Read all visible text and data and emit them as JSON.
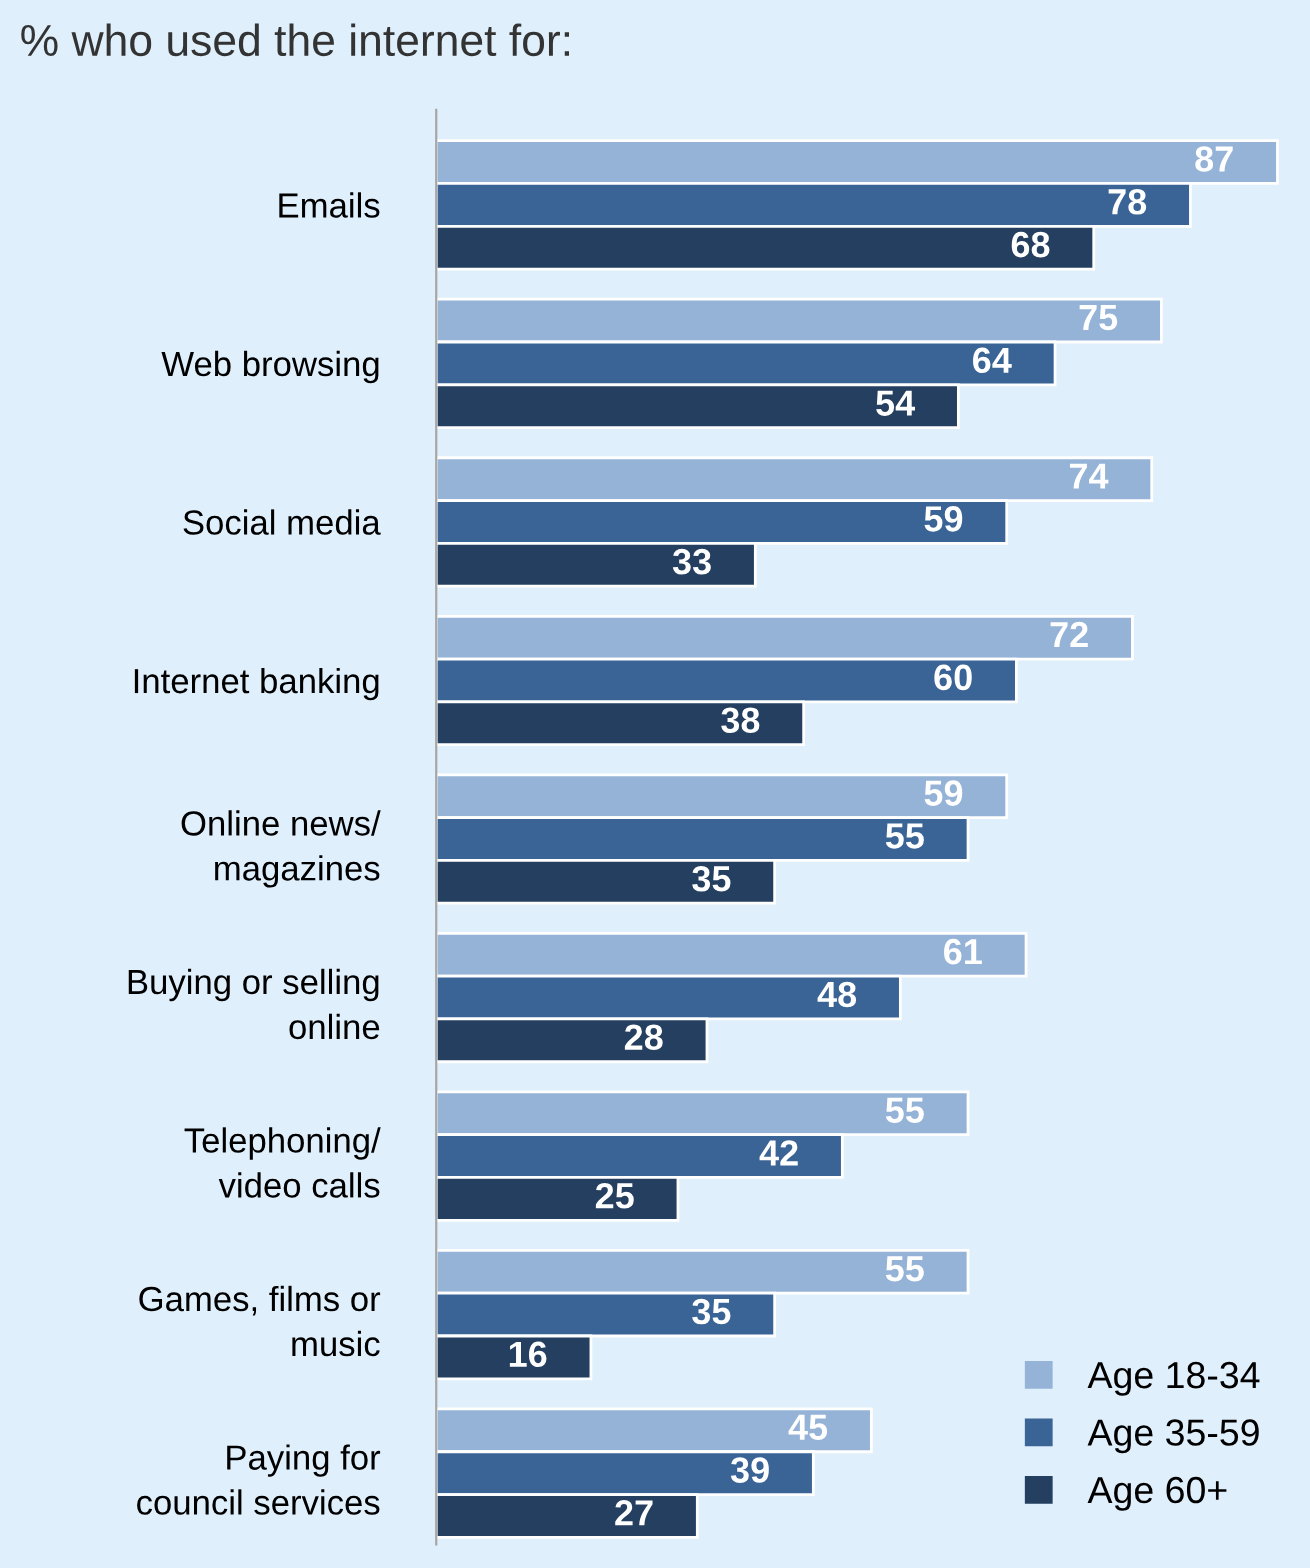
{
  "chart_data": {
    "type": "bar",
    "orientation": "horizontal",
    "title": "% who used the internet for:",
    "categories": [
      "Emails",
      "Web browsing",
      "Social media",
      "Internet banking",
      "Online news/\nmagazines",
      "Buying or selling\nonline",
      "Telephoning/\nvideo calls",
      "Games, films or\nmusic",
      "Paying for\ncouncil services"
    ],
    "series": [
      {
        "name": "Age 18-34",
        "color": "#95b3d7",
        "values": [
          87,
          75,
          74,
          72,
          59,
          61,
          55,
          55,
          45
        ]
      },
      {
        "name": "Age 35-59",
        "color": "#3a6496",
        "values": [
          78,
          64,
          59,
          60,
          55,
          48,
          42,
          35,
          39
        ]
      },
      {
        "name": "Age 60+",
        "color": "#243f60",
        "values": [
          68,
          54,
          33,
          38,
          35,
          28,
          25,
          16,
          27
        ]
      }
    ],
    "data_labels": true,
    "legend": "bottom right"
  }
}
